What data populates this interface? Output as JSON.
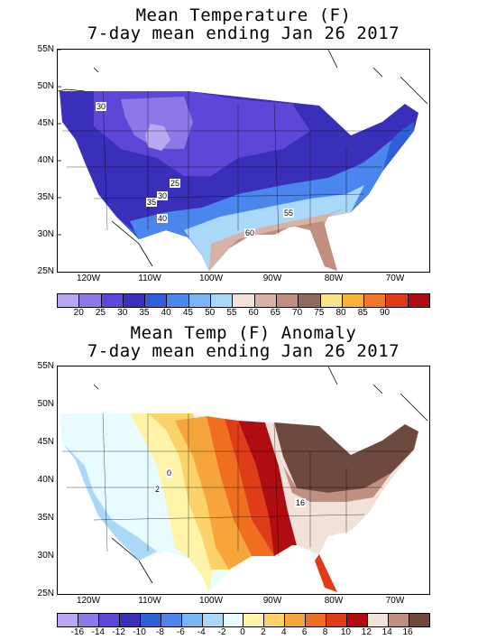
{
  "map1": {
    "title_line1": "Mean Temperature (F)",
    "title_line2": "7-day mean ending Jan 26 2017",
    "contour_labels": [
      "30",
      "25",
      "30",
      "35",
      "40",
      "55",
      "60"
    ],
    "colorbar_labels": [
      "20",
      "25",
      "30",
      "35",
      "40",
      "45",
      "50",
      "55",
      "60",
      "65",
      "70",
      "75",
      "80",
      "85",
      "90"
    ],
    "colors": [
      "#b9a7f2",
      "#8e78e8",
      "#5d46d8",
      "#3a2fb8",
      "#2f5fd8",
      "#4a86ec",
      "#7ab4f4",
      "#a9d8f8",
      "#f2e1d8",
      "#d8b2a4",
      "#c08f80",
      "#8f6a5e",
      "#f9e38b",
      "#f6b23a",
      "#f0782a",
      "#e03c18",
      "#b00d12"
    ]
  },
  "map2": {
    "title_line1": "Mean Temp (F) Anomaly",
    "title_line2": "7-day mean ending Jan 26 2017",
    "contour_labels": [
      "0",
      "2",
      "16"
    ],
    "colorbar_labels": [
      "-16",
      "-14",
      "-12",
      "-10",
      "-8",
      "-6",
      "-4",
      "-2",
      "0",
      "2",
      "4",
      "6",
      "8",
      "10",
      "12",
      "14",
      "16"
    ],
    "colors": [
      "#b9a7f2",
      "#8e78e8",
      "#5d46d8",
      "#3a2fb8",
      "#2f5fd8",
      "#4a86ec",
      "#7ab4f4",
      "#a9d8f8",
      "#e8fbff",
      "#fff3a8",
      "#fbd36a",
      "#f6a53a",
      "#ef6e20",
      "#e03c18",
      "#b00d12",
      "#f2e1d8",
      "#c08f80",
      "#6e4a3e"
    ]
  },
  "lat_labels": [
    "55N",
    "50N",
    "45N",
    "40N",
    "35N",
    "30N",
    "25N"
  ],
  "lon_labels": [
    "120W",
    "110W",
    "100W",
    "90W",
    "80W",
    "70W"
  ]
}
